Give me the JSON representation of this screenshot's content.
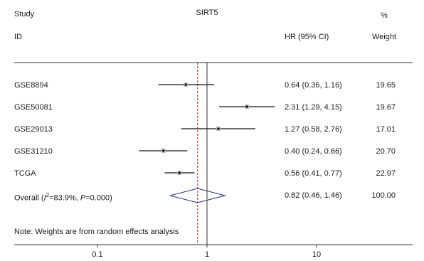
{
  "chart_data": {
    "type": "forest",
    "title": "SIRT5",
    "header": {
      "study": "Study",
      "id": "ID",
      "hr": "HR (95% CI)",
      "pct": "%",
      "weight": "Weight"
    },
    "studies": [
      {
        "name": "GSE8894",
        "hr": 0.64,
        "lo": 0.36,
        "hi": 1.16,
        "ci_text": "0.64 (0.36, 1.16)",
        "weight": "19.65"
      },
      {
        "name": "GSE50081",
        "hr": 2.31,
        "lo": 1.29,
        "hi": 4.15,
        "ci_text": "2.31 (1.29, 4.15)",
        "weight": "19.67"
      },
      {
        "name": "GSE29013",
        "hr": 1.27,
        "lo": 0.58,
        "hi": 2.76,
        "ci_text": "1.27 (0.58, 2.76)",
        "weight": "17.01"
      },
      {
        "name": "GSE31210",
        "hr": 0.4,
        "lo": 0.24,
        "hi": 0.66,
        "ci_text": "0.40 (0.24, 0.66)",
        "weight": "20.70"
      },
      {
        "name": "TCGA",
        "hr": 0.56,
        "lo": 0.41,
        "hi": 0.77,
        "ci_text": "0.56 (0.41, 0.77)",
        "weight": "22.97"
      }
    ],
    "overall": {
      "label_prefix": "Overall (",
      "i2_symbol": "I",
      "i2_sup": "2",
      "i2_value": "=83.9%, ",
      "p_symbol": "P",
      "p_value": "=0.000)",
      "hr": 0.82,
      "lo": 0.46,
      "hi": 1.46,
      "ci_text": "0.82 (0.46, 1.46)",
      "weight": "100.00"
    },
    "note": "Note: Weights are from random effects analysis",
    "x_ticks": [
      {
        "value": 0.1,
        "label": "0.1"
      },
      {
        "value": 1,
        "label": "1"
      },
      {
        "value": 10,
        "label": "10"
      }
    ],
    "x_scale": "log",
    "xlim": [
      0.02,
      42
    ],
    "null_line": 1,
    "overall_line": 0.82,
    "colors": {
      "ci_line": "#111111",
      "diamond": "#2b2f7a",
      "null_line": "#333333",
      "overall_line": "#b3262a",
      "axis": "#333333"
    }
  }
}
